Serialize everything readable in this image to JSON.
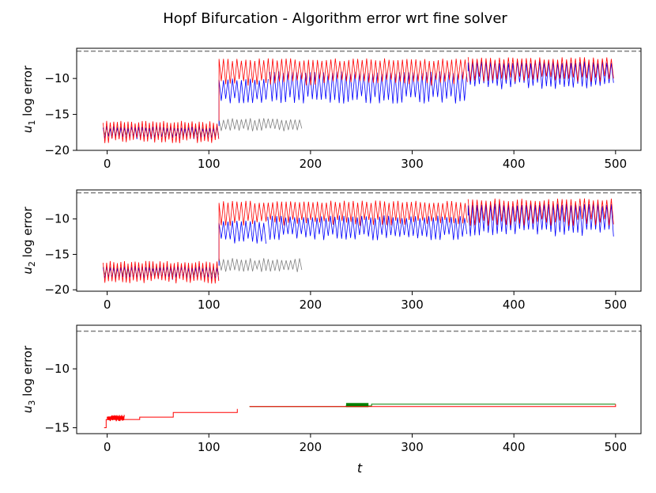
{
  "title": "Hopf Bifurcation - Algorithm error wrt fine solver",
  "xlabel": "t",
  "colors": {
    "red": "#ff0000",
    "blue": "#0000ff",
    "gray": "#808080",
    "green": "#008000",
    "dashed": "#808080"
  },
  "chart_data": [
    {
      "type": "line",
      "id": "u1",
      "ylabel": "u_1 log error",
      "ylabel_main": "u",
      "ylabel_sub": "1",
      "ylabel_rest": " log error",
      "xlim": [
        -30,
        525
      ],
      "ylim": [
        -20,
        -5.8
      ],
      "xticks": [
        0,
        100,
        200,
        300,
        400,
        500
      ],
      "xtick_labels": [
        "0",
        "100",
        "200",
        "300",
        "400",
        "500"
      ],
      "yticks": [
        -20,
        -15,
        -10
      ],
      "ytick_labels": [
        "−20",
        "−15",
        "−10"
      ],
      "reference_line": -6.2,
      "series": [
        {
          "color": "gray",
          "segments": [
            {
              "x0": -4,
              "x1": 110,
              "ylow": -18.2,
              "yhigh": -16.6,
              "period": 3.5
            },
            {
              "x0": 110,
              "x1": 192,
              "ylow": -17.4,
              "yhigh": -15.5,
              "period": 4.4
            }
          ]
        },
        {
          "color": "blue",
          "segments": [
            {
              "x0": -4,
              "x1": 110,
              "ylow": -18.5,
              "yhigh": -16.6,
              "period": 3.5
            },
            {
              "x0": 110,
              "x1": 160,
              "ylow": -13.5,
              "yhigh": -10.0,
              "period": 4.4
            },
            {
              "x0": 160,
              "x1": 355,
              "ylow": -13.5,
              "yhigh": -9.0,
              "period": 4.4
            },
            {
              "x0": 355,
              "x1": 500,
              "ylow": -11.5,
              "yhigh": -7.5,
              "period": 4.4
            }
          ]
        },
        {
          "color": "red",
          "segments": [
            {
              "x0": -4,
              "x1": 110,
              "ylow": -19.0,
              "yhigh": -15.9,
              "period": 3.5
            },
            {
              "x0": 110,
              "x1": 355,
              "ylow": -11.0,
              "yhigh": -7.2,
              "period": 4.4
            },
            {
              "x0": 355,
              "x1": 500,
              "ylow": -10.5,
              "yhigh": -7.0,
              "period": 4.4
            }
          ]
        }
      ]
    },
    {
      "type": "line",
      "id": "u2",
      "ylabel": "u_2 log error",
      "ylabel_main": "u",
      "ylabel_sub": "2",
      "ylabel_rest": " log error",
      "xlim": [
        -30,
        525
      ],
      "ylim": [
        -20.2,
        -5.9
      ],
      "xticks": [
        0,
        100,
        200,
        300,
        400,
        500
      ],
      "xtick_labels": [
        "0",
        "100",
        "200",
        "300",
        "400",
        "500"
      ],
      "yticks": [
        -20,
        -15,
        -10
      ],
      "ytick_labels": [
        "−20",
        "−15",
        "−10"
      ],
      "reference_line": -6.3,
      "series": [
        {
          "color": "gray",
          "segments": [
            {
              "x0": -4,
              "x1": 110,
              "ylow": -18.3,
              "yhigh": -16.5,
              "period": 3.5
            },
            {
              "x0": 110,
              "x1": 192,
              "ylow": -17.5,
              "yhigh": -15.5,
              "period": 4.4
            }
          ]
        },
        {
          "color": "blue",
          "segments": [
            {
              "x0": -4,
              "x1": 110,
              "ylow": -18.6,
              "yhigh": -16.6,
              "period": 3.5
            },
            {
              "x0": 110,
              "x1": 158,
              "ylow": -13.5,
              "yhigh": -10.2,
              "period": 4.4
            },
            {
              "x0": 158,
              "x1": 355,
              "ylow": -13.0,
              "yhigh": -9.5,
              "period": 4.4
            },
            {
              "x0": 355,
              "x1": 500,
              "ylow": -12.5,
              "yhigh": -7.8,
              "period": 4.4
            }
          ]
        },
        {
          "color": "red",
          "segments": [
            {
              "x0": -4,
              "x1": 110,
              "ylow": -19.2,
              "yhigh": -15.9,
              "period": 3.5
            },
            {
              "x0": 110,
              "x1": 355,
              "ylow": -11.0,
              "yhigh": -7.4,
              "period": 4.4
            },
            {
              "x0": 355,
              "x1": 500,
              "ylow": -11.0,
              "yhigh": -7.1,
              "period": 4.4
            }
          ]
        }
      ]
    },
    {
      "type": "line",
      "id": "u3",
      "ylabel": "u_3 log error",
      "ylabel_main": "u",
      "ylabel_sub": "3",
      "ylabel_rest": " log error",
      "xlim": [
        -30,
        525
      ],
      "ylim": [
        -15.5,
        -6.3
      ],
      "xticks": [
        0,
        100,
        200,
        300,
        400,
        500
      ],
      "xtick_labels": [
        "0",
        "100",
        "200",
        "300",
        "400",
        "500"
      ],
      "yticks": [
        -15,
        -10
      ],
      "ytick_labels": [
        "−15",
        "−10"
      ],
      "reference_line": -6.8,
      "steps": [
        {
          "color": "green",
          "points": [
            [
              140,
              -13.2
            ],
            [
              235,
              -13.15
            ],
            [
              260,
              -13.0
            ],
            [
              500,
              -13.0
            ]
          ]
        },
        {
          "color": "green",
          "band": true,
          "x0": 235,
          "x1": 257,
          "y0": -13.25,
          "y1": -12.9
        },
        {
          "color": "red",
          "points": [
            [
              -3,
              -15.0
            ],
            [
              -1,
              -14.3
            ],
            [
              15,
              -14.3
            ],
            [
              32,
              -14.1
            ],
            [
              65,
              -13.7
            ],
            [
              128,
              -13.4
            ]
          ]
        },
        {
          "color": "red",
          "points": [
            [
              140,
              -13.2
            ],
            [
              500,
              -13.0
            ]
          ]
        },
        {
          "color": "red",
          "noise": true,
          "x0": 0,
          "x1": 17,
          "ylow": -14.5,
          "yhigh": -13.9
        }
      ]
    }
  ]
}
